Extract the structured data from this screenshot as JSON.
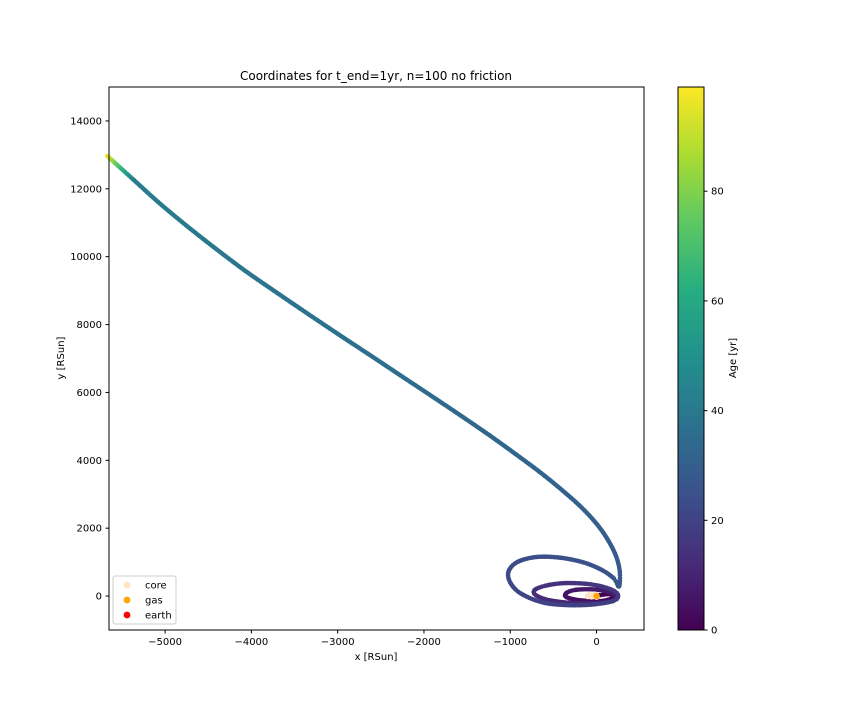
{
  "chart_data": {
    "type": "scatter",
    "title": "Coordinates for t_end=1yr, n=100 no friction",
    "xlabel": "x [RSun]",
    "ylabel": "y [RSun]",
    "xlim": [
      -5650,
      550
    ],
    "ylim": [
      -1000,
      15000
    ],
    "x_ticks": [
      -5000,
      -4000,
      -3000,
      -2000,
      -1000,
      0
    ],
    "x_tick_labels": [
      "−5000",
      "−4000",
      "−3000",
      "−2000",
      "−1000",
      "0"
    ],
    "y_ticks": [
      0,
      2000,
      4000,
      6000,
      8000,
      10000,
      12000,
      14000
    ],
    "y_tick_labels": [
      "0",
      "2000",
      "4000",
      "6000",
      "8000",
      "10000",
      "12000",
      "14000"
    ],
    "grid": false,
    "legend_position": "lower-left",
    "colorbar": {
      "label": "Age [yr]",
      "range": [
        0,
        99
      ],
      "ticks": [
        0,
        20,
        40,
        60,
        80
      ],
      "tick_labels": [
        "0",
        "20",
        "40",
        "60",
        "80"
      ],
      "colormap": "viridis",
      "colormap_stops": [
        "#440154",
        "#472c7a",
        "#3b518b",
        "#2c718e",
        "#21908d",
        "#27ad81",
        "#5cc863",
        "#aadc32",
        "#fde725"
      ]
    },
    "series": [
      {
        "name": "core",
        "color": "#ffe4c4",
        "points": [
          [
            -80,
            30
          ],
          [
            -40,
            0
          ],
          [
            0,
            -20
          ],
          [
            -60,
            -10
          ],
          [
            -20,
            40
          ],
          [
            -100,
            0
          ]
        ]
      },
      {
        "name": "gas",
        "color": "#ffa500",
        "points": [
          [
            0,
            0
          ]
        ]
      },
      {
        "name": "earth",
        "color": "#ff0000",
        "points": []
      }
    ],
    "trajectory": {
      "color_by": "age",
      "points": [
        [
          -30,
          0,
          0.5
        ],
        [
          150,
          60,
          1.2
        ],
        [
          200,
          0,
          1.9
        ],
        [
          130,
          -110,
          2.6
        ],
        [
          0,
          -150,
          3.3
        ],
        [
          -200,
          -120,
          4.0
        ],
        [
          -350,
          -30,
          4.7
        ],
        [
          -350,
          90,
          5.4
        ],
        [
          -250,
          180,
          6.1
        ],
        [
          -80,
          200,
          6.8
        ],
        [
          80,
          160,
          7.5
        ],
        [
          200,
          60,
          8.2
        ],
        [
          230,
          -60,
          8.9
        ],
        [
          150,
          -170,
          9.6
        ],
        [
          -50,
          -210,
          10.3
        ],
        [
          -300,
          -200,
          11.0
        ],
        [
          -550,
          -120,
          11.7
        ],
        [
          -700,
          20,
          12.4
        ],
        [
          -720,
          170,
          13.1
        ],
        [
          -600,
          300,
          13.8
        ],
        [
          -380,
          380,
          14.5
        ],
        [
          -120,
          360,
          15.2
        ],
        [
          80,
          270,
          15.9
        ],
        [
          210,
          140,
          16.6
        ],
        [
          250,
          0,
          17.3
        ],
        [
          200,
          -140,
          18.0
        ],
        [
          -10,
          -240,
          18.7
        ],
        [
          -300,
          -270,
          19.4
        ],
        [
          -620,
          -190,
          20.1
        ],
        [
          -880,
          80,
          20.8
        ],
        [
          -1000,
          400,
          21.5
        ],
        [
          -1020,
          720,
          22.2
        ],
        [
          -920,
          1000,
          22.9
        ],
        [
          -700,
          1150,
          23.6
        ],
        [
          -420,
          1130,
          24.3
        ],
        [
          -150,
          990,
          25.0
        ],
        [
          60,
          770,
          25.7
        ],
        [
          200,
          520,
          26.4
        ],
        [
          260,
          280,
          27.1
        ],
        [
          270,
          700,
          27.8
        ],
        [
          230,
          1150,
          28.5
        ],
        [
          140,
          1620,
          29.2
        ],
        [
          10,
          2100,
          29.9
        ],
        [
          -170,
          2600,
          30.6
        ],
        [
          -390,
          3100,
          31.3
        ],
        [
          -640,
          3620,
          32.0
        ],
        [
          -920,
          4150,
          32.7
        ],
        [
          -1220,
          4700,
          33.4
        ],
        [
          -1540,
          5260,
          34.1
        ],
        [
          -1880,
          5840,
          34.8
        ],
        [
          -2230,
          6430,
          35.5
        ],
        [
          -2590,
          7040,
          36.2
        ],
        [
          -2960,
          7660,
          36.9
        ],
        [
          -3330,
          8290,
          37.6
        ],
        [
          -3700,
          8930,
          38.3
        ],
        [
          -4070,
          9580,
          39.0
        ],
        [
          -4420,
          10250,
          39.7
        ],
        [
          -4760,
          10930,
          40.4
        ],
        [
          -5080,
          11610,
          41.1
        ],
        [
          -5380,
          12300,
          41.8
        ]
      ]
    }
  }
}
